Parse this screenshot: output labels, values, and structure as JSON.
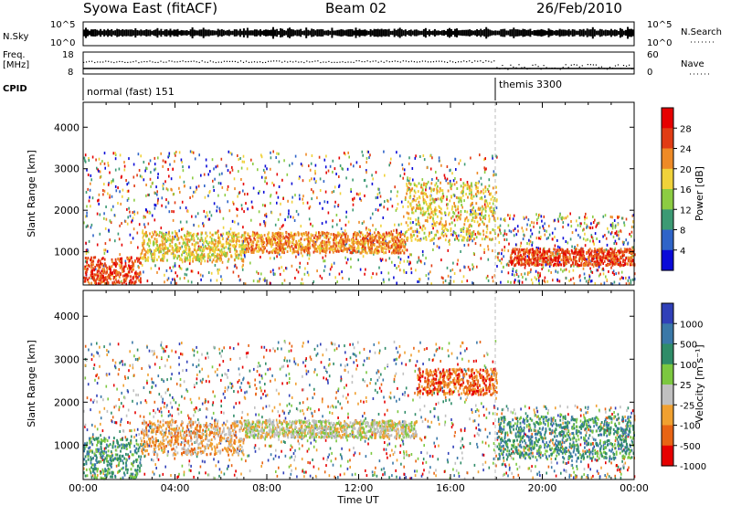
{
  "header": {
    "station": "Syowa East (fitACF)",
    "beam": "Beam 02",
    "date": "26/Feb/2010"
  },
  "noise_panel": {
    "left_label": "N.Sky",
    "right_label": "N.Search",
    "tick_top": "10^5",
    "tick_bottom": "10^0"
  },
  "freq_panel": {
    "left_label_1": "Freq.",
    "left_label_2": "[MHz]",
    "right_label": "Nave",
    "left_ticks": [
      "18",
      "8"
    ],
    "right_ticks": [
      "60",
      "0"
    ]
  },
  "cpid": {
    "label": "CPID",
    "modes": [
      {
        "name": "normal (fast) 151",
        "start_hour": 0
      },
      {
        "name": "themis 3300",
        "start_hour": 18
      }
    ]
  },
  "chart_data": [
    {
      "type": "heatmap",
      "panel": "power",
      "ylabel": "Slant Range [km]",
      "xlabel": "",
      "yticks": [
        "1000",
        "2000",
        "3000",
        "4000"
      ],
      "ylim": [
        200,
        4600
      ],
      "xlim_hours": [
        0,
        24
      ],
      "colorbar_label": "Power [dB]",
      "colorbar_ticks": [
        "4",
        "8",
        "12",
        "16",
        "20",
        "24",
        "28"
      ],
      "colors": [
        "#0a0ad8",
        "#2f64c8",
        "#3c9a74",
        "#8ccc42",
        "#f0d23a",
        "#ee8a26",
        "#e13c14",
        "#e60000"
      ],
      "features": [
        {
          "t_start": 0.0,
          "t_end": 2.5,
          "range_low": 250,
          "range_high": 900,
          "level": 6
        },
        {
          "t_start": 2.5,
          "t_end": 7.0,
          "range_low": 800,
          "range_high": 1500,
          "level": 4
        },
        {
          "t_start": 7.0,
          "t_end": 14.0,
          "range_low": 1000,
          "range_high": 1500,
          "level": 5
        },
        {
          "t_start": 14.0,
          "t_end": 18.0,
          "range_low": 1300,
          "range_high": 2700,
          "level": 4
        },
        {
          "t_start": 18.5,
          "t_end": 24.0,
          "range_low": 700,
          "range_high": 1100,
          "level": 6
        }
      ]
    },
    {
      "type": "heatmap",
      "panel": "velocity",
      "ylabel": "Slant Range [km]",
      "xlabel": "Time UT",
      "yticks": [
        "1000",
        "2000",
        "3000",
        "4000"
      ],
      "ylim": [
        200,
        4600
      ],
      "xlim_hours": [
        0,
        24
      ],
      "xticks": [
        "00:00",
        "04:00",
        "08:00",
        "12:00",
        "16:00",
        "20:00",
        "00:00"
      ],
      "colorbar_label": "Velocity [m s⁻¹]",
      "colorbar_ticks": [
        "1000",
        "500",
        "100",
        "25",
        "-25",
        "-100",
        "-500",
        "-1000"
      ],
      "colors": [
        "#3040b8",
        "#3a78a8",
        "#2f8c68",
        "#7cc840",
        "#c0c0c0",
        "#f0a030",
        "#e86414",
        "#e60000"
      ],
      "features": [
        {
          "t_start": 0.0,
          "t_end": 2.5,
          "range_low": 250,
          "range_high": 1200,
          "level": 2
        },
        {
          "t_start": 2.5,
          "t_end": 7.0,
          "range_low": 800,
          "range_high": 1600,
          "level": 5
        },
        {
          "t_start": 7.0,
          "t_end": 14.5,
          "range_low": 1200,
          "range_high": 1600,
          "level": 4
        },
        {
          "t_start": 14.5,
          "t_end": 18.0,
          "range_low": 2200,
          "range_high": 2800,
          "level": 6
        },
        {
          "t_start": 18.0,
          "t_end": 24.0,
          "range_low": 700,
          "range_high": 1700,
          "level": 2
        }
      ]
    }
  ]
}
